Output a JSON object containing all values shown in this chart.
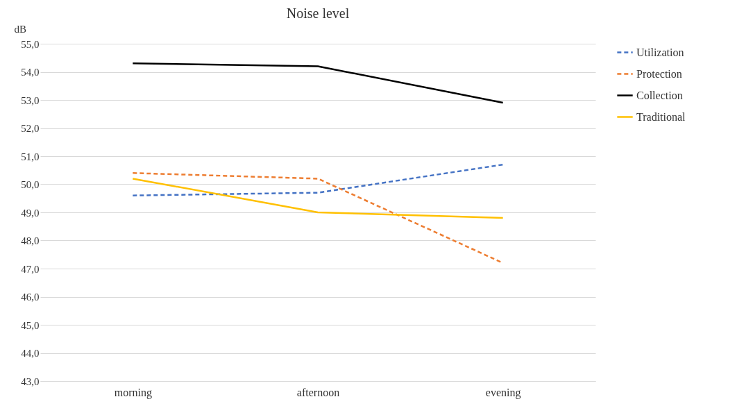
{
  "chart_data": {
    "type": "line",
    "title": "Noise level",
    "ylabel": "dB",
    "categories": [
      "morning",
      "afternoon",
      "evening"
    ],
    "series": [
      {
        "name": "Utilization",
        "color": "#4472c4",
        "line_style": "dashed",
        "values": [
          49.6,
          49.7,
          50.7
        ]
      },
      {
        "name": "Protection",
        "color": "#ed7d31",
        "line_style": "dashed",
        "values": [
          50.4,
          50.2,
          47.2
        ]
      },
      {
        "name": "Collection",
        "color": "#000000",
        "line_style": "solid",
        "values": [
          54.3,
          54.2,
          52.9
        ]
      },
      {
        "name": "Traditional",
        "color": "#ffc000",
        "line_style": "solid",
        "values": [
          50.2,
          49.0,
          48.8
        ]
      }
    ],
    "ylim": [
      43,
      55
    ],
    "yticks": [
      {
        "value": 43,
        "label": "43,0"
      },
      {
        "value": 44,
        "label": "44,0"
      },
      {
        "value": 45,
        "label": "45,0"
      },
      {
        "value": 46,
        "label": "46,0"
      },
      {
        "value": 47,
        "label": "47,0"
      },
      {
        "value": 48,
        "label": "48,0"
      },
      {
        "value": 49,
        "label": "49,0"
      },
      {
        "value": 50,
        "label": "50,0"
      },
      {
        "value": 51,
        "label": "51,0"
      },
      {
        "value": 52,
        "label": "52,0"
      },
      {
        "value": 53,
        "label": "53,0"
      },
      {
        "value": 54,
        "label": "54,0"
      },
      {
        "value": 55,
        "label": "55,0"
      }
    ],
    "grid": "y",
    "legend": "right",
    "marker": "none"
  }
}
